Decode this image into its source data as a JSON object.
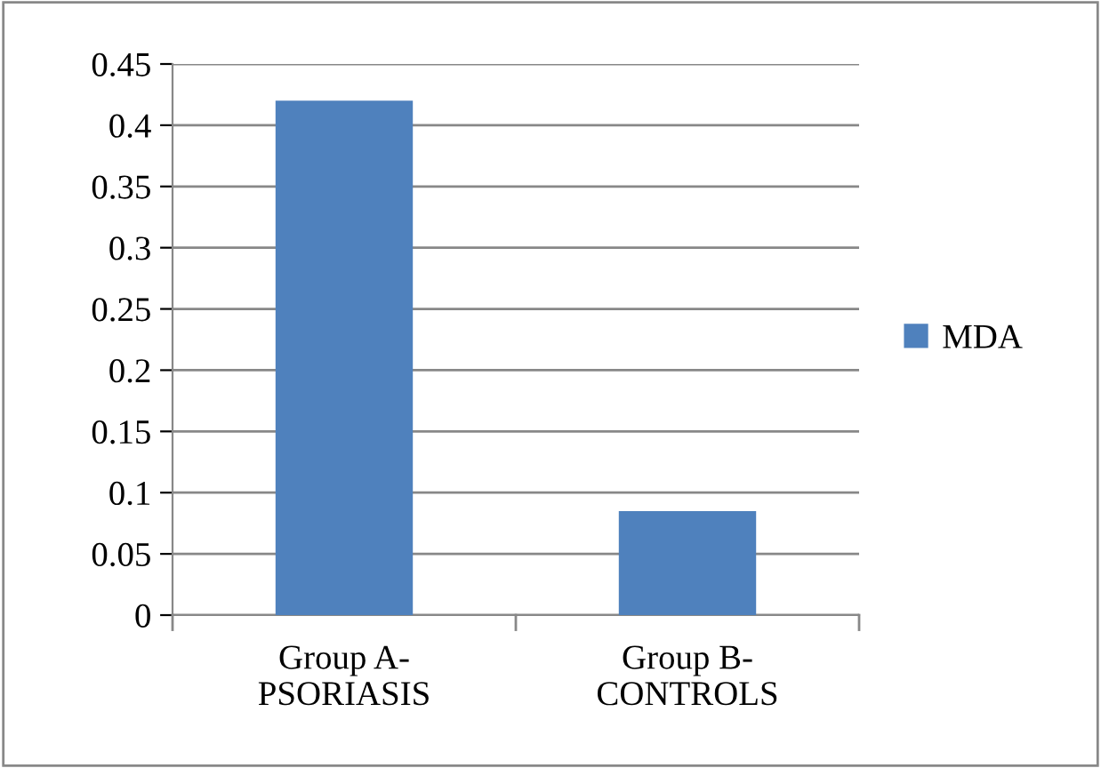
{
  "chart_data": {
    "type": "bar",
    "categories": [
      "Group A-\nPSORIASIS",
      "Group B-\nCONTROLS"
    ],
    "series": [
      {
        "name": "MDA",
        "color": "#4f81bd",
        "values": [
          0.42,
          0.085
        ]
      }
    ],
    "ylim": [
      0,
      0.45
    ],
    "yticks": [
      0,
      0.05,
      0.1,
      0.15,
      0.2,
      0.25,
      0.3,
      0.35,
      0.4,
      0.45
    ],
    "grid": "y",
    "legend": "right"
  }
}
